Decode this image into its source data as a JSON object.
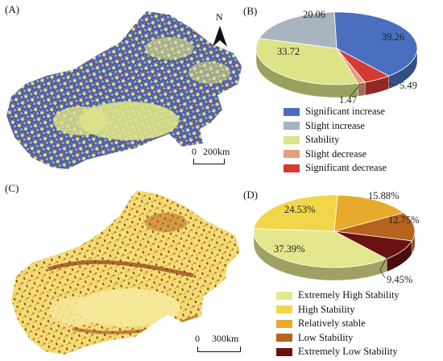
{
  "panels": {
    "a": {
      "label": "(A)",
      "north": "N",
      "scale_zero": "0",
      "scale_dist": "200km"
    },
    "b": {
      "label": "(B)"
    },
    "c": {
      "label": "(C)",
      "scale_zero": "0",
      "scale_dist": "300km"
    },
    "d": {
      "label": "(D)"
    }
  },
  "chart_data": [
    {
      "type": "pie",
      "panel": "(B)",
      "title": "",
      "slices": [
        {
          "name": "Significant increase",
          "value": 39.26,
          "label": "39.26",
          "color": "#4a6fbf"
        },
        {
          "name": "Significant decrease",
          "value": 5.49,
          "label": "5.49",
          "color": "#d43a34"
        },
        {
          "name": "Slight decrease",
          "value": 1.47,
          "label": "1.47",
          "color": "#e3a07c"
        },
        {
          "name": "Stability",
          "value": 33.72,
          "label": "33.72",
          "color": "#dde487"
        },
        {
          "name": "Slight increase",
          "value": 20.06,
          "label": "20.06",
          "color": "#a8b4c0"
        }
      ],
      "legend": [
        {
          "name": "Significant increase",
          "color": "#4a6fbf"
        },
        {
          "name": "Slight increase",
          "color": "#a8b4c0"
        },
        {
          "name": "Stability",
          "color": "#dde487"
        },
        {
          "name": "Slight decrease",
          "color": "#e3a07c"
        },
        {
          "name": "Significant decrease",
          "color": "#d43a34"
        }
      ]
    },
    {
      "type": "pie",
      "panel": "(D)",
      "title": "",
      "slices": [
        {
          "name": "Relatively stable",
          "value": 15.88,
          "label": "15.88%",
          "color": "#e7aa2c"
        },
        {
          "name": "Low Stability",
          "value": 12.75,
          "label": "12.75%",
          "color": "#b4641c"
        },
        {
          "name": "Extremely Low Stability",
          "value": 9.45,
          "label": "9.45%",
          "color": "#6a1212"
        },
        {
          "name": "Extremely High Stability",
          "value": 37.39,
          "label": "37.39%",
          "color": "#e3e68c"
        },
        {
          "name": "High Stability",
          "value": 24.53,
          "label": "24.53%",
          "color": "#f0d648"
        }
      ],
      "legend": [
        {
          "name": "Extremely High Stability",
          "color": "#e3e68c"
        },
        {
          "name": "High Stability",
          "color": "#f0d648"
        },
        {
          "name": "Relatively stable",
          "color": "#e7aa2c"
        },
        {
          "name": "Low Stability",
          "color": "#b4641c"
        },
        {
          "name": "Extremely Low Stability",
          "color": "#6a1212"
        }
      ]
    }
  ]
}
